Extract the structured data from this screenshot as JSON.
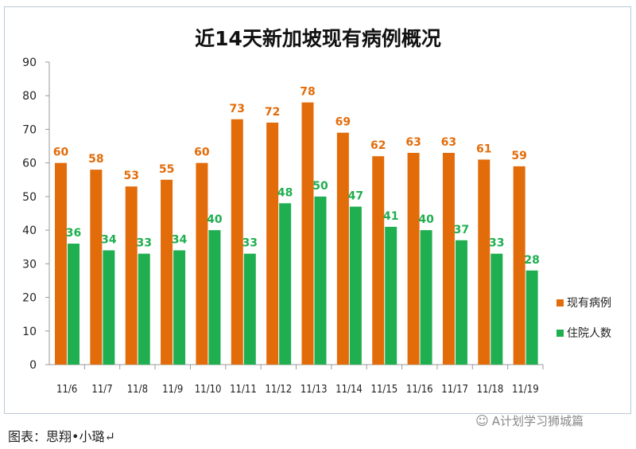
{
  "chart_data": {
    "type": "bar",
    "title": "近14天新加坡现有病例概况",
    "categories": [
      "11/6",
      "11/7",
      "11/8",
      "11/9",
      "11/10",
      "11/11",
      "11/12",
      "11/13",
      "11/14",
      "11/15",
      "11/16",
      "11/17",
      "11/18",
      "11/19"
    ],
    "series": [
      {
        "name": "现有病例",
        "color": "#E36C0A",
        "values": [
          60,
          58,
          53,
          55,
          60,
          73,
          72,
          78,
          69,
          62,
          63,
          63,
          61,
          59
        ]
      },
      {
        "name": "住院人数",
        "color": "#1FAF50",
        "values": [
          36,
          34,
          33,
          34,
          40,
          33,
          48,
          50,
          47,
          41,
          40,
          37,
          33,
          28
        ]
      }
    ],
    "ylim": [
      0,
      90
    ],
    "yticks": [
      0,
      10,
      20,
      30,
      40,
      50,
      60,
      70,
      80,
      90
    ],
    "grid": false,
    "legend": "right"
  },
  "footer": {
    "caption": "图表：思翔•小璐↵"
  },
  "watermark": {
    "text": "A计划学习狮城篇",
    "icon": "wechat-icon"
  }
}
